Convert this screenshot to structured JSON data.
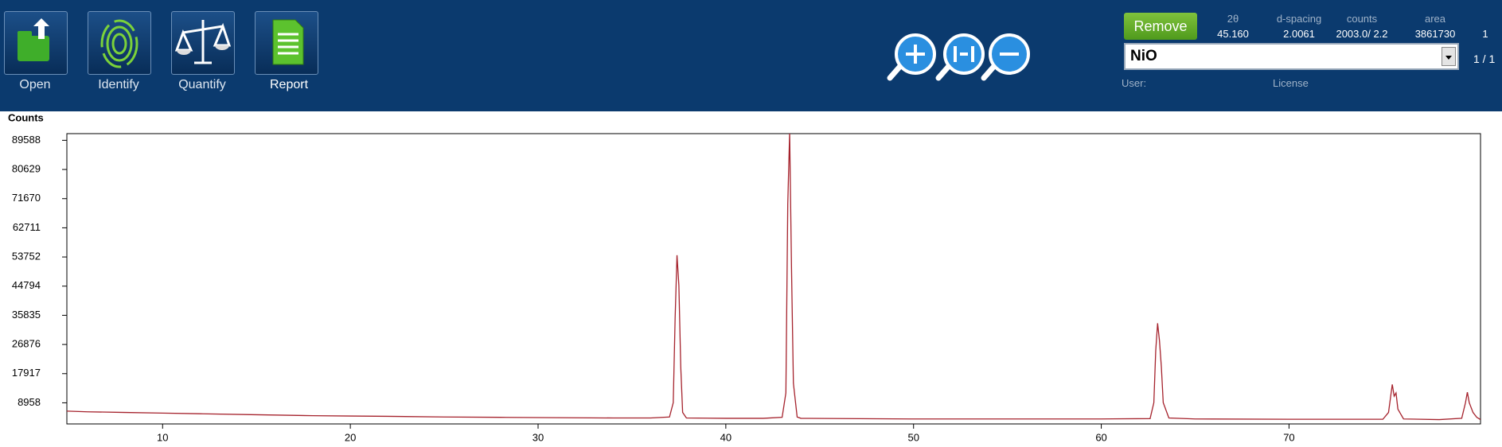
{
  "toolbar": {
    "buttons": [
      "Open",
      "Identify",
      "Quantify",
      "Report"
    ]
  },
  "info": {
    "headers": [
      "2θ",
      "d-spacing",
      "counts",
      "area"
    ],
    "values": [
      "45.160",
      "2.0061",
      "2003.0/ 2.2",
      "3861730"
    ],
    "index": "1"
  },
  "remove": "Remove",
  "phase": "NiO",
  "page": "1 / 1",
  "user": "User:",
  "license": "License",
  "chart_data": {
    "type": "line",
    "ylabel": "Counts",
    "x": [
      4.9,
      6,
      8,
      10,
      12,
      15,
      18,
      20,
      22,
      25,
      28,
      31,
      34,
      36,
      37.0,
      37.2,
      37.3,
      37.4,
      37.5,
      37.6,
      37.7,
      37.9,
      40,
      42,
      43.0,
      43.2,
      43.3,
      43.4,
      43.5,
      43.6,
      43.8,
      44,
      50,
      55,
      60,
      62.6,
      62.8,
      62.9,
      63.0,
      63.1,
      63.2,
      63.3,
      63.6,
      65,
      70,
      75.0,
      75.3,
      75.5,
      75.6,
      75.7,
      75.8,
      76.1,
      78,
      79.2,
      79.4,
      79.5,
      79.6,
      79.8,
      80,
      80.2
    ],
    "series": [
      {
        "name": "NiO",
        "color": "#a5222c",
        "values": [
          6400,
          6200,
          6000,
          5800,
          5600,
          5300,
          5000,
          4900,
          4800,
          4600,
          4500,
          4400,
          4300,
          4300,
          4600,
          9000,
          35000,
          54300,
          45000,
          20000,
          6000,
          4300,
          4200,
          4200,
          4500,
          12000,
          70000,
          92000,
          50000,
          15000,
          4600,
          4200,
          4000,
          4000,
          4000,
          4100,
          9000,
          25000,
          33400,
          28000,
          20000,
          9000,
          4300,
          4000,
          3900,
          3900,
          6000,
          14600,
          11000,
          12000,
          7000,
          4000,
          3800,
          4200,
          9000,
          12200,
          9000,
          6000,
          4500,
          3800
        ]
      }
    ],
    "xlim": [
      4.9,
      80.2
    ],
    "ylim": [
      2470,
      91640
    ],
    "xticks": [
      10,
      20,
      30,
      40,
      50,
      60,
      70
    ],
    "yticks": [
      8958,
      17917,
      26876,
      35835,
      44794,
      53752,
      62711,
      71670,
      80629,
      89588
    ],
    "grid": false
  }
}
